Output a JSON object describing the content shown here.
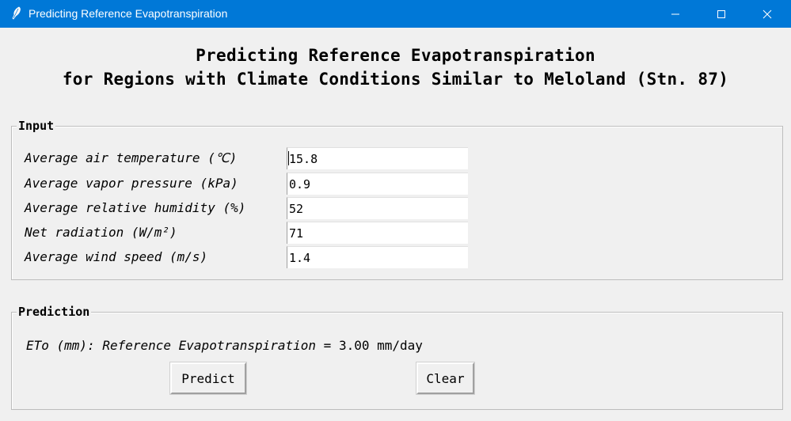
{
  "window": {
    "title": "Predicting Reference Evapotranspiration",
    "controls": [
      "minimize-icon",
      "maximize-icon",
      "close-icon"
    ],
    "titlebar_color": "#0078d7"
  },
  "heading": {
    "line1": "Predicting Reference Evapotranspiration",
    "line2": "for Regions with Climate Conditions Similar to Meloland (Stn. 87)"
  },
  "input": {
    "legend": "Input",
    "fields": [
      {
        "label": "Average air temperature (℃)",
        "value": "15.8"
      },
      {
        "label": "Average vapor pressure (kPa)",
        "value": "0.9"
      },
      {
        "label": "Average relative humidity (%)",
        "value": "52"
      },
      {
        "label": "Net radiation (W/m²)",
        "value": "71"
      },
      {
        "label": "Average wind speed (m/s)",
        "value": "1.4"
      }
    ]
  },
  "prediction": {
    "legend": "Prediction",
    "result_label": "ETo (mm): Reference Evapotranspiration = ",
    "result_value": "3.00 mm/day",
    "predict_label": "Predict",
    "clear_label": "Clear"
  }
}
